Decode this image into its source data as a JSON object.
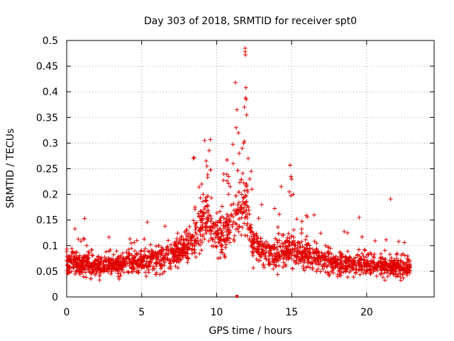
{
  "chart_data": {
    "type": "scatter",
    "title": "Day 303 of 2018, SRMTID for receiver spt0",
    "xlabel": "GPS time / hours",
    "ylabel": "SRMTID / TECUs",
    "xlim": [
      0,
      24.5
    ],
    "ylim": [
      0,
      0.5
    ],
    "xticks": [
      0,
      5,
      10,
      15,
      20
    ],
    "xtick_labels": [
      "0",
      "5",
      "10",
      "15",
      "20"
    ],
    "yticks": [
      0,
      0.05,
      0.1,
      0.15,
      0.2,
      0.25,
      0.3,
      0.35,
      0.4,
      0.45,
      0.5
    ],
    "ytick_labels": [
      "0",
      "0.05",
      "0.1",
      "0.15",
      "0.2",
      "0.25",
      "0.3",
      "0.35",
      "0.4",
      "0.45",
      "0.5"
    ],
    "grid": true,
    "marker": "plus",
    "series_color": "#e00000",
    "x_range": [
      0,
      22.9
    ],
    "baseline_profile": [
      [
        0,
        0.072
      ],
      [
        2,
        0.06
      ],
      [
        4,
        0.066
      ],
      [
        6,
        0.074
      ],
      [
        7.5,
        0.085
      ],
      [
        8.5,
        0.115
      ],
      [
        9.3,
        0.16
      ],
      [
        10,
        0.12
      ],
      [
        10.5,
        0.125
      ],
      [
        11,
        0.145
      ],
      [
        11.6,
        0.17
      ],
      [
        12,
        0.18
      ],
      [
        12.4,
        0.1
      ],
      [
        13.5,
        0.082
      ],
      [
        15,
        0.09
      ],
      [
        16.5,
        0.08
      ],
      [
        18,
        0.065
      ],
      [
        20,
        0.065
      ],
      [
        21.5,
        0.06
      ],
      [
        22.9,
        0.055
      ]
    ],
    "highlight_points": [
      [
        8.5,
        0.272
      ],
      [
        8.45,
        0.27
      ],
      [
        9.2,
        0.305
      ],
      [
        9.3,
        0.265
      ],
      [
        9.35,
        0.255
      ],
      [
        11.25,
        0.418
      ],
      [
        11.35,
        0.365
      ],
      [
        11.3,
        0.33
      ],
      [
        11.45,
        0.32
      ],
      [
        11.8,
        0.3
      ],
      [
        11.9,
        0.485
      ],
      [
        11.9,
        0.478
      ],
      [
        11.92,
        0.472
      ],
      [
        11.95,
        0.408
      ],
      [
        11.92,
        0.388
      ],
      [
        11.98,
        0.385
      ],
      [
        11.85,
        0.37
      ],
      [
        12.0,
        0.355
      ],
      [
        11.7,
        0.29
      ],
      [
        12.1,
        0.27
      ],
      [
        12.3,
        0.245
      ],
      [
        10.8,
        0.235
      ],
      [
        10.9,
        0.215
      ],
      [
        14.9,
        0.257
      ],
      [
        14.95,
        0.235
      ],
      [
        15.0,
        0.23
      ],
      [
        14.3,
        0.215
      ],
      [
        14.85,
        0.205
      ],
      [
        21.6,
        0.191
      ],
      [
        9.0,
        0.22
      ],
      [
        9.1,
        0.2
      ],
      [
        11.1,
        0.26
      ],
      [
        11.5,
        0.28
      ],
      [
        12.2,
        0.23
      ],
      [
        12.35,
        0.21
      ],
      [
        15.1,
        0.2
      ],
      [
        13.0,
        0.18
      ],
      [
        16.5,
        0.16
      ],
      [
        19.5,
        0.155
      ],
      [
        1.2,
        0.153
      ]
    ],
    "zero_points": [
      [
        11.35,
        0.0
      ]
    ]
  }
}
